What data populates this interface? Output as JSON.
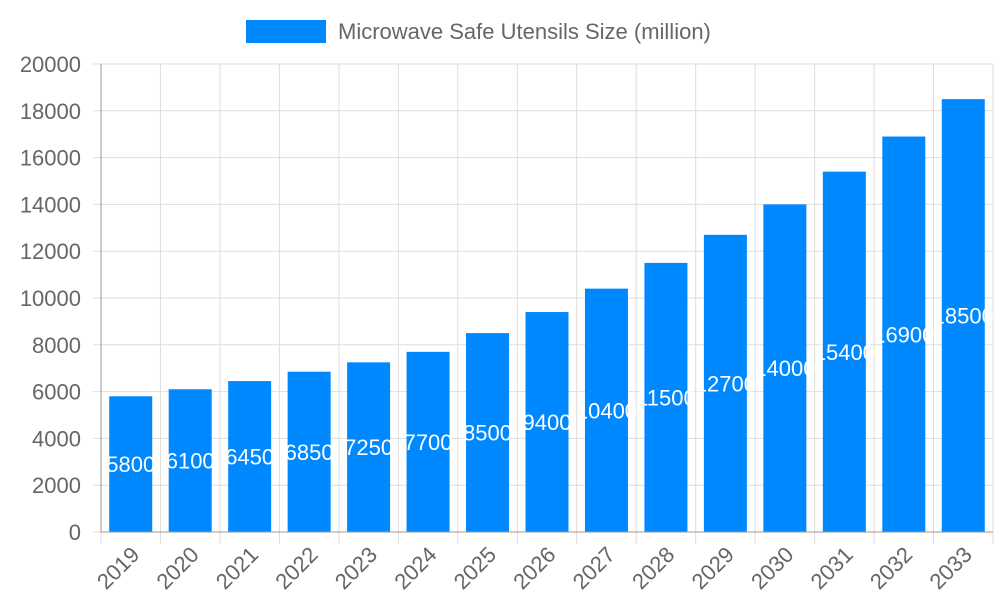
{
  "chart_data": {
    "type": "bar",
    "title": "",
    "xlabel": "",
    "ylabel": "",
    "legend": {
      "position": "top",
      "entries": [
        "Microwave Safe Utensils Size (million)"
      ]
    },
    "categories": [
      "2019",
      "2020",
      "2021",
      "2022",
      "2023",
      "2024",
      "2025",
      "2026",
      "2027",
      "2028",
      "2029",
      "2030",
      "2031",
      "2032",
      "2033"
    ],
    "series": [
      {
        "name": "Microwave Safe Utensils Size (million)",
        "values": [
          5800,
          6100,
          6450,
          6850,
          7250,
          7700,
          8500,
          9400,
          10400,
          11500,
          12700,
          14000,
          15400,
          16900,
          18500
        ],
        "color": "#0088FF"
      }
    ],
    "ylim": [
      0,
      20000
    ],
    "yticks": [
      "0",
      "2000",
      "4000",
      "6000",
      "8000",
      "10000",
      "12000",
      "14000",
      "16000",
      "18000",
      "20000"
    ],
    "grid": true,
    "data_labels": true
  }
}
